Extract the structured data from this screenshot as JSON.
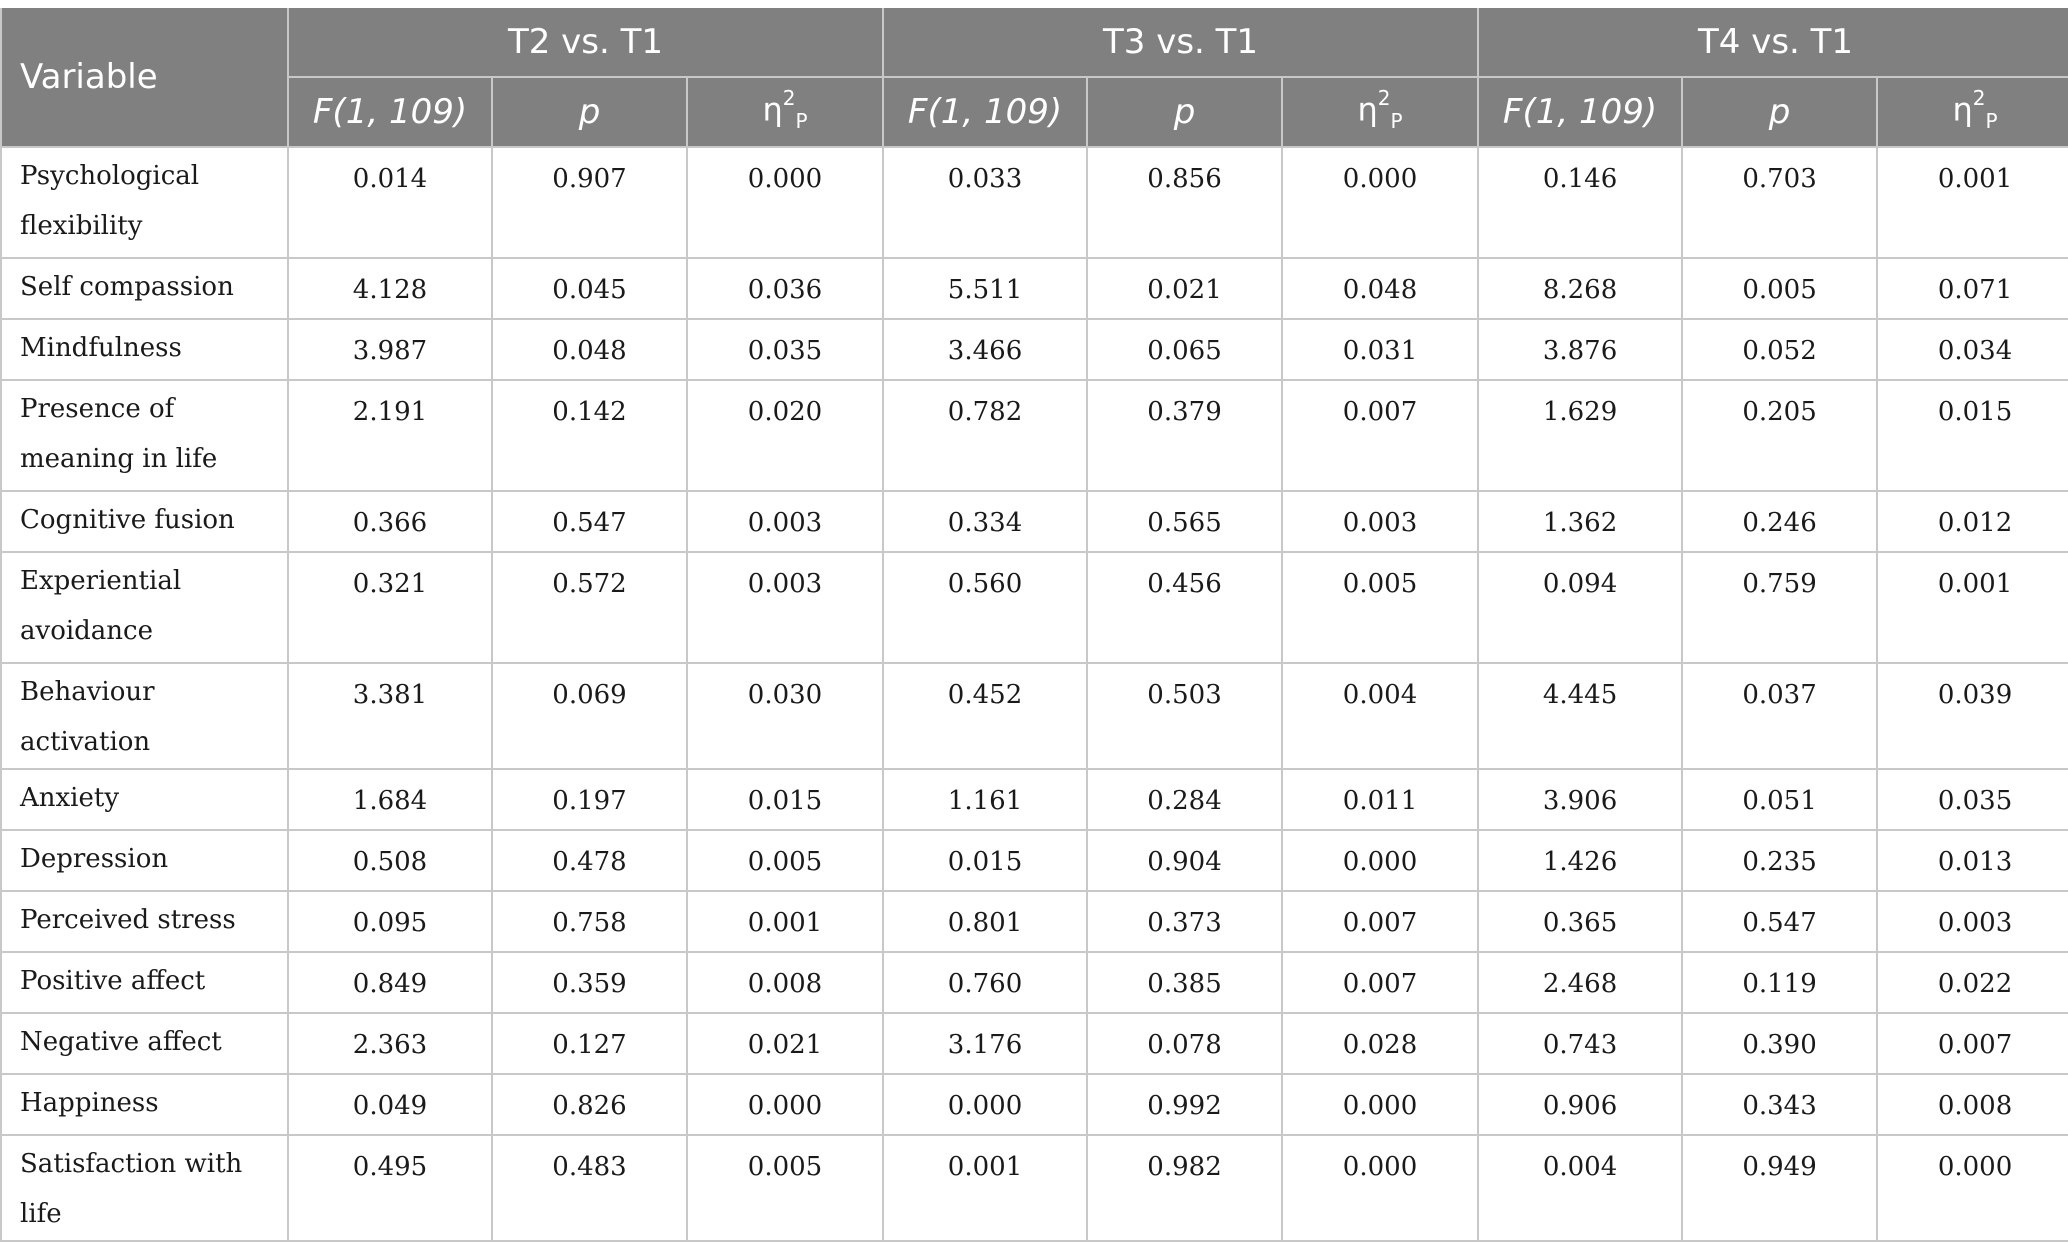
{
  "header": {
    "variable": "Variable",
    "groups": [
      "T2 vs. T1",
      "T3 vs. T1",
      "T4 vs. T1"
    ],
    "stat_f": "F(1, 109)",
    "stat_p": "p",
    "stat_eta": "η",
    "stat_eta_sup": "2",
    "stat_eta_sub": "P"
  },
  "rows": [
    {
      "variable": "Psychological flexibility",
      "v": [
        "0.014",
        "0.907",
        "0.000",
        "0.033",
        "0.856",
        "0.000",
        "0.146",
        "0.703",
        "0.001"
      ]
    },
    {
      "variable": "Self compassion",
      "v": [
        "4.128",
        "0.045",
        "0.036",
        "5.511",
        "0.021",
        "0.048",
        "8.268",
        "0.005",
        "0.071"
      ]
    },
    {
      "variable": "Mindfulness",
      "v": [
        "3.987",
        "0.048",
        "0.035",
        "3.466",
        "0.065",
        "0.031",
        "3.876",
        "0.052",
        "0.034"
      ]
    },
    {
      "variable": "Presence of meaning in life",
      "v": [
        "2.191",
        "0.142",
        "0.020",
        "0.782",
        "0.379",
        "0.007",
        "1.629",
        "0.205",
        "0.015"
      ]
    },
    {
      "variable": "Cognitive fusion",
      "v": [
        "0.366",
        "0.547",
        "0.003",
        "0.334",
        "0.565",
        "0.003",
        "1.362",
        "0.246",
        "0.012"
      ]
    },
    {
      "variable": "Experiential avoidance",
      "v": [
        "0.321",
        "0.572",
        "0.003",
        "0.560",
        "0.456",
        "0.005",
        "0.094",
        "0.759",
        "0.001"
      ]
    },
    {
      "variable": "Behaviour activation",
      "v": [
        "3.381",
        "0.069",
        "0.030",
        "0.452",
        "0.503",
        "0.004",
        "4.445",
        "0.037",
        "0.039"
      ]
    },
    {
      "variable": "Anxiety",
      "v": [
        "1.684",
        "0.197",
        "0.015",
        "1.161",
        "0.284",
        "0.011",
        "3.906",
        "0.051",
        "0.035"
      ]
    },
    {
      "variable": "Depression",
      "v": [
        "0.508",
        "0.478",
        "0.005",
        "0.015",
        "0.904",
        "0.000",
        "1.426",
        "0.235",
        "0.013"
      ]
    },
    {
      "variable": "Perceived stress",
      "v": [
        "0.095",
        "0.758",
        "0.001",
        "0.801",
        "0.373",
        "0.007",
        "0.365",
        "0.547",
        "0.003"
      ]
    },
    {
      "variable": "Positive affect",
      "v": [
        "0.849",
        "0.359",
        "0.008",
        "0.760",
        "0.385",
        "0.007",
        "2.468",
        "0.119",
        "0.022"
      ]
    },
    {
      "variable": "Negative affect",
      "v": [
        "2.363",
        "0.127",
        "0.021",
        "3.176",
        "0.078",
        "0.028",
        "0.743",
        "0.390",
        "0.007"
      ]
    },
    {
      "variable": "Happiness",
      "v": [
        "0.049",
        "0.826",
        "0.000",
        "0.000",
        "0.992",
        "0.000",
        "0.906",
        "0.343",
        "0.008"
      ]
    },
    {
      "variable": "Satisfaction with life",
      "v": [
        "0.495",
        "0.483",
        "0.005",
        "0.001",
        "0.982",
        "0.000",
        "0.004",
        "0.949",
        "0.000"
      ]
    }
  ]
}
